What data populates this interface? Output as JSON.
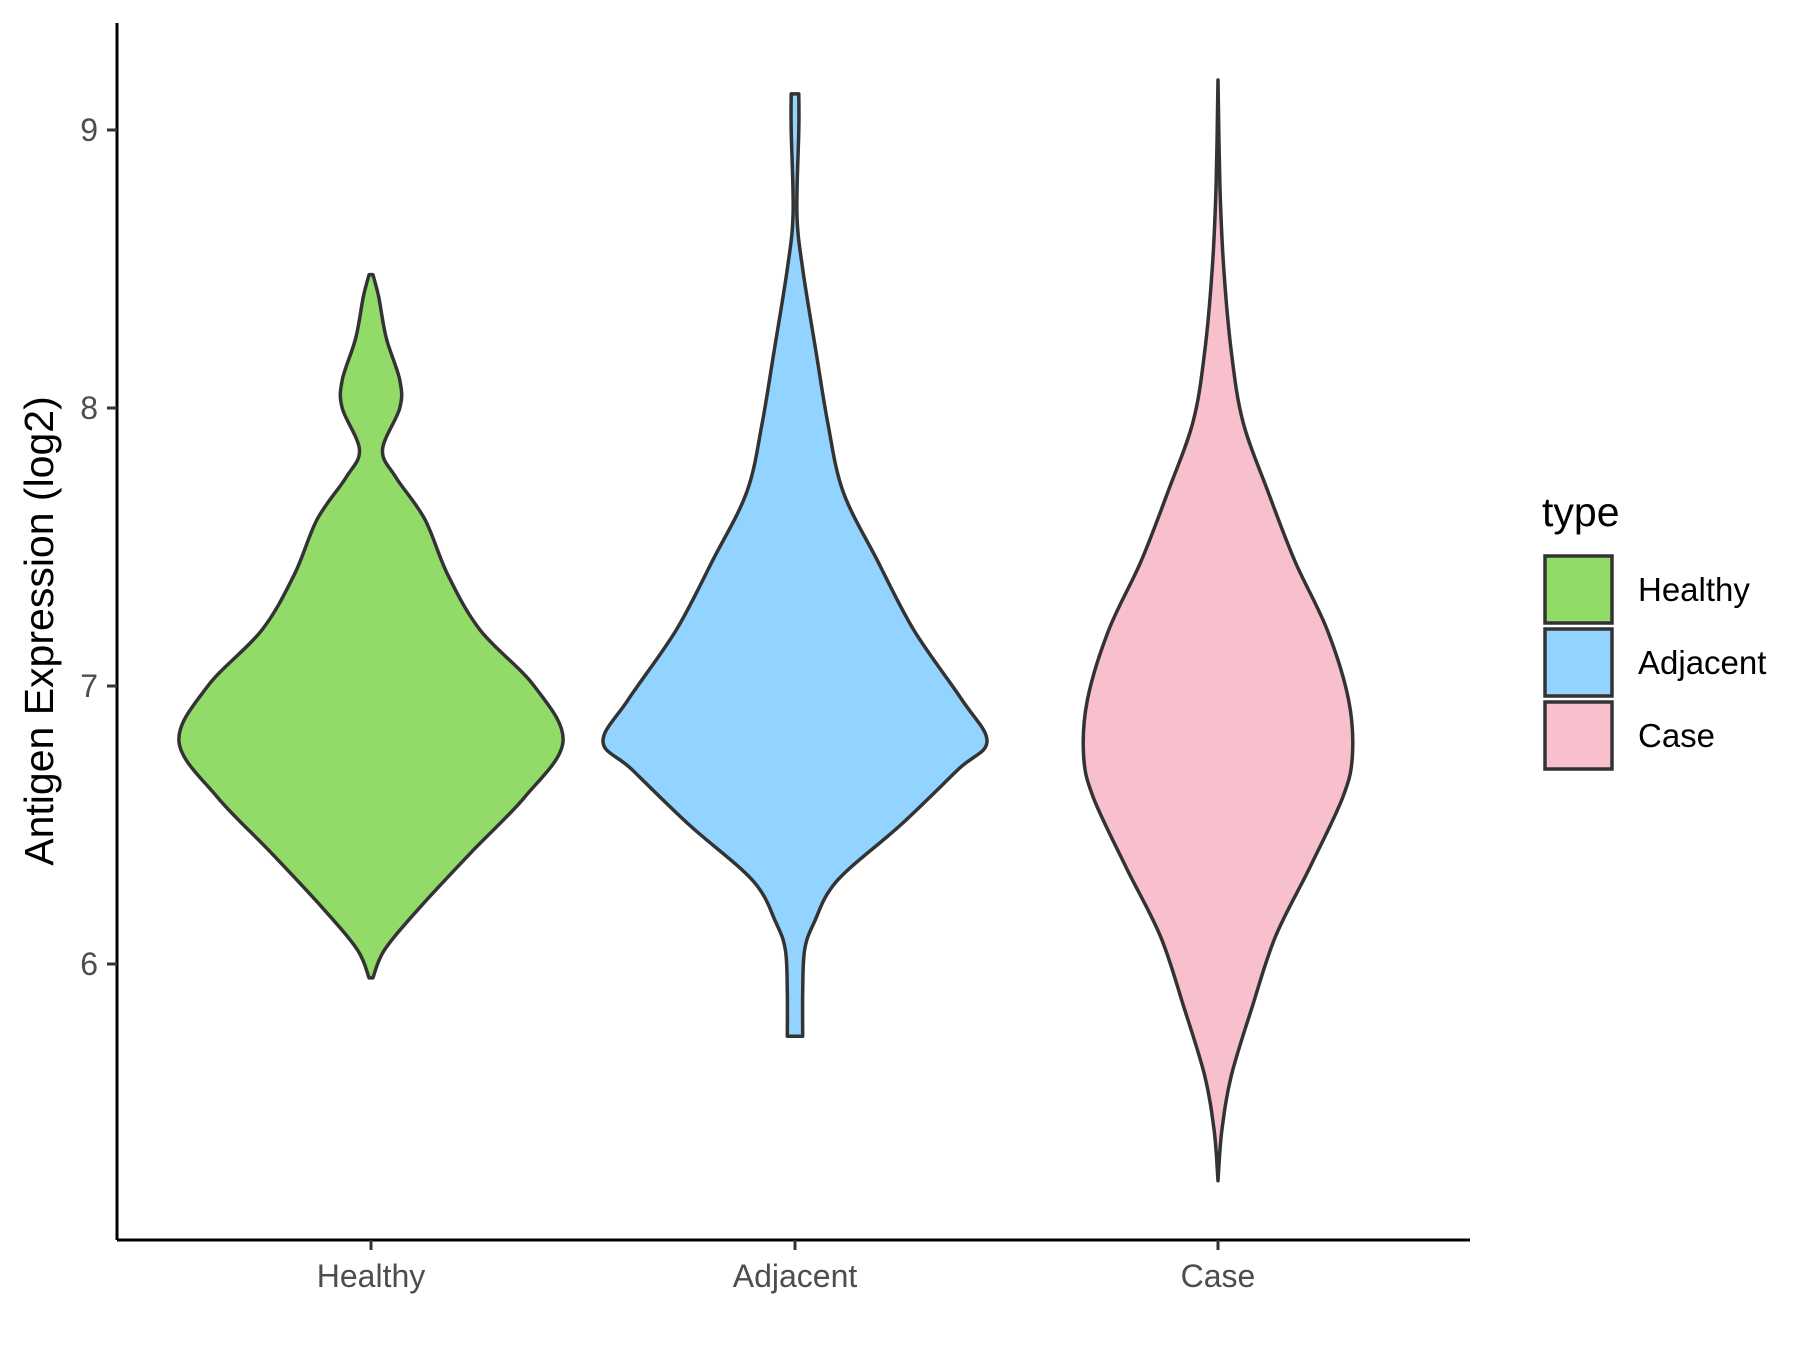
{
  "chart_data": {
    "type": "violin",
    "title": "",
    "xlabel": "",
    "ylabel": "Antigen Expression (log2)",
    "categories": [
      "Healthy",
      "Adjacent",
      "Case"
    ],
    "yticks": [
      6,
      7,
      8,
      9
    ],
    "ylim": [
      5.0,
      9.4
    ],
    "grid": false,
    "legend": {
      "title": "type",
      "position": "right",
      "entries": [
        "Healthy",
        "Adjacent",
        "Case"
      ]
    },
    "series": [
      {
        "name": "Healthy",
        "color": "#93DB69",
        "min": 5.95,
        "max": 8.48,
        "density_profile": [
          [
            5.95,
            0.01
          ],
          [
            6.05,
            0.07
          ],
          [
            6.2,
            0.25
          ],
          [
            6.4,
            0.52
          ],
          [
            6.6,
            0.8
          ],
          [
            6.8,
            1.0
          ],
          [
            7.0,
            0.85
          ],
          [
            7.2,
            0.57
          ],
          [
            7.4,
            0.4
          ],
          [
            7.6,
            0.28
          ],
          [
            7.75,
            0.13
          ],
          [
            7.85,
            0.06
          ],
          [
            8.0,
            0.15
          ],
          [
            8.1,
            0.15
          ],
          [
            8.25,
            0.08
          ],
          [
            8.4,
            0.04
          ],
          [
            8.48,
            0.01
          ]
        ]
      },
      {
        "name": "Adjacent",
        "color": "#93D3FF",
        "min": 5.74,
        "max": 9.13,
        "density_profile": [
          [
            5.74,
            0.04
          ],
          [
            5.9,
            0.04
          ],
          [
            6.05,
            0.05
          ],
          [
            6.15,
            0.1
          ],
          [
            6.3,
            0.22
          ],
          [
            6.5,
            0.55
          ],
          [
            6.7,
            0.85
          ],
          [
            6.8,
            1.0
          ],
          [
            6.95,
            0.87
          ],
          [
            7.2,
            0.62
          ],
          [
            7.45,
            0.43
          ],
          [
            7.7,
            0.25
          ],
          [
            7.95,
            0.17
          ],
          [
            8.2,
            0.11
          ],
          [
            8.5,
            0.04
          ],
          [
            8.7,
            0.01
          ],
          [
            9.0,
            0.02
          ],
          [
            9.13,
            0.02
          ]
        ]
      },
      {
        "name": "Case",
        "color": "#F7C0CC",
        "min": 5.22,
        "max": 9.18,
        "density_profile": [
          [
            5.22,
            0.0
          ],
          [
            5.4,
            0.02
          ],
          [
            5.6,
            0.07
          ],
          [
            5.85,
            0.18
          ],
          [
            6.1,
            0.3
          ],
          [
            6.35,
            0.48
          ],
          [
            6.6,
            0.65
          ],
          [
            6.75,
            0.7
          ],
          [
            6.95,
            0.68
          ],
          [
            7.2,
            0.57
          ],
          [
            7.45,
            0.4
          ],
          [
            7.7,
            0.26
          ],
          [
            7.95,
            0.13
          ],
          [
            8.2,
            0.07
          ],
          [
            8.5,
            0.03
          ],
          [
            8.8,
            0.01
          ],
          [
            9.18,
            0.0
          ]
        ]
      }
    ]
  }
}
